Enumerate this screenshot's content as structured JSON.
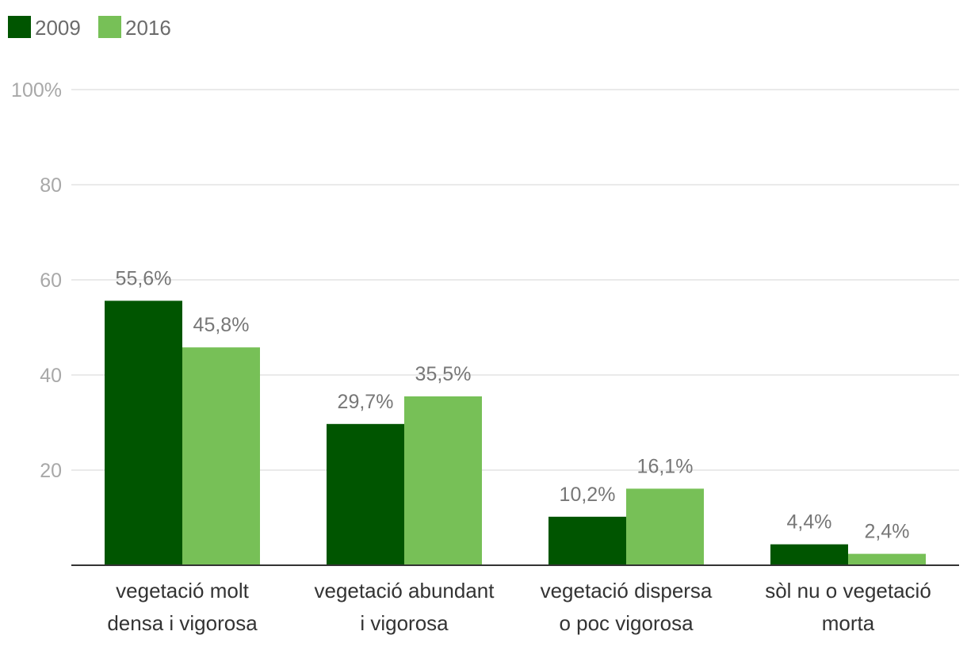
{
  "chart_data": {
    "type": "bar",
    "categories": [
      [
        "vegetació molt",
        "densa i vigorosa"
      ],
      [
        "vegetació abundant",
        "i vigorosa"
      ],
      [
        "vegetació dispersa",
        "o poc vigorosa"
      ],
      [
        "sòl nu o vegetació",
        "morta"
      ]
    ],
    "series": [
      {
        "name": "2009",
        "color": "#005500",
        "values": [
          55.6,
          29.7,
          10.2,
          4.4
        ],
        "labels": [
          "55,6%",
          "29,7%",
          "10,2%",
          "4,4%"
        ]
      },
      {
        "name": "2016",
        "color": "#77c057",
        "values": [
          45.8,
          35.5,
          16.1,
          2.4
        ],
        "labels": [
          "45,8%",
          "35,5%",
          "16,1%",
          "2,4%"
        ]
      }
    ],
    "yticks": [
      20,
      40,
      60,
      80,
      100
    ],
    "ytick_labels": [
      "20",
      "40",
      "60",
      "80",
      "100%"
    ],
    "ylim": [
      0,
      100
    ],
    "grid": true,
    "legend": "top-left",
    "title": "",
    "xlabel": "",
    "ylabel": ""
  }
}
